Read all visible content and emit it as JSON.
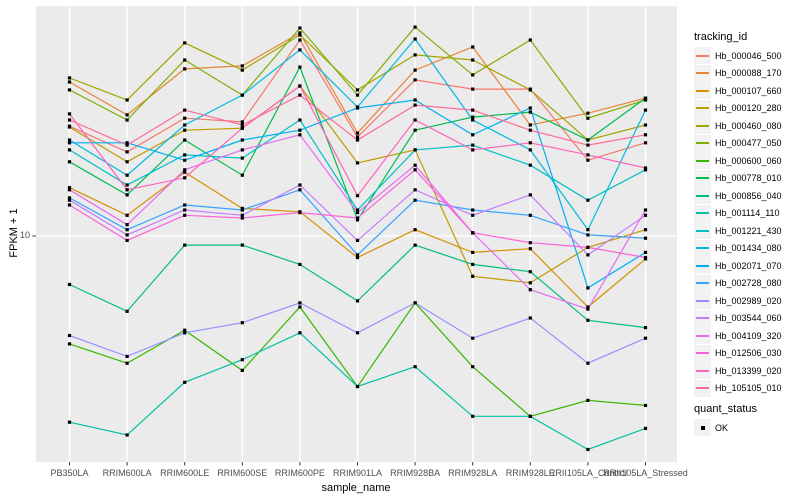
{
  "panel": {
    "background": "#EBEBEB",
    "gridline_color": "#FFFFFF",
    "tick_color": "#333333",
    "tick_text_color": "#4D4D4D"
  },
  "axes": {
    "x": {
      "title": "sample_name"
    },
    "y": {
      "title": "FPKM + 1",
      "tick_label": "10",
      "scale": "log10"
    }
  },
  "legend": {
    "tracking_title": "tracking_id",
    "quant_title": "quant_status",
    "quant_items": [
      {
        "label": "OK",
        "marker": "black-square"
      }
    ]
  },
  "chart_data": {
    "type": "line",
    "xlabel": "sample_name",
    "ylabel": "FPKM + 1",
    "yscale": "log10",
    "ytick_values": [
      10
    ],
    "ytick_labels": [
      "10"
    ],
    "ylim": [
      1.3,
      75
    ],
    "grid": "vertical-per-category-plus-y10",
    "legend_position": "right",
    "point_marker": {
      "shape": "square",
      "color": "#000000",
      "meaning": "quant_status OK"
    },
    "categories": [
      "PB350LA",
      "RRIM600LA",
      "RRIM600LE",
      "RRIM600SE",
      "RRIM600PE",
      "RRIM901LA",
      "RRIM928BA",
      "RRIM928LA",
      "RRIM928LE",
      "RRII105LA_Control",
      "RRII105LA_Stressed"
    ],
    "series": [
      {
        "name": "Hb_000046_500",
        "color": "#F8766D",
        "values": [
          27.5,
          21.7,
          29.6,
          28.6,
          60.8,
          24.9,
          42.1,
          38.7,
          38.7,
          20.1,
          23.6
        ]
      },
      {
        "name": "Hb_000088_170",
        "color": "#EA8331",
        "values": [
          41.3,
          30.5,
          46.6,
          47.9,
          64.9,
          25.8,
          46.1,
          57.0,
          27.8,
          31.0,
          35.6
        ]
      },
      {
        "name": "Hb_000107_660",
        "color": "#D89000",
        "values": [
          15.6,
          12.1,
          18.0,
          12.9,
          12.5,
          8.2,
          10.6,
          8.6,
          8.9,
          5.2,
          8.1
        ]
      },
      {
        "name": "Hb_000120_280",
        "color": "#C09B00",
        "values": [
          27.3,
          19.8,
          26.5,
          27.0,
          39.8,
          19.6,
          22.1,
          6.9,
          6.5,
          9.0,
          10.6
        ]
      },
      {
        "name": "Hb_000460_080",
        "color": "#A3A500",
        "values": [
          42.9,
          35.0,
          59.2,
          46.1,
          63.7,
          38.4,
          53.0,
          50.6,
          38.4,
          24.2,
          27.8
        ]
      },
      {
        "name": "Hb_000477_050",
        "color": "#7CAE00",
        "values": [
          38.4,
          29.1,
          50.6,
          36.6,
          67.9,
          36.6,
          68.5,
          44.1,
          60.8,
          29.6,
          35.0
        ]
      },
      {
        "name": "Hb_000600_060",
        "color": "#39B600",
        "values": [
          3.7,
          3.1,
          4.2,
          2.9,
          5.2,
          2.5,
          5.4,
          3.0,
          1.9,
          2.2,
          2.1
        ]
      },
      {
        "name": "Hb_000778_010",
        "color": "#00BB4E",
        "values": [
          19.8,
          14.6,
          24.2,
          17.5,
          47.4,
          11.6,
          26.5,
          29.9,
          31.3,
          24.2,
          35.6
        ]
      },
      {
        "name": "Hb_000856_040",
        "color": "#00BF7D",
        "values": [
          6.4,
          5.0,
          9.2,
          9.2,
          7.7,
          5.5,
          9.2,
          7.7,
          7.2,
          4.6,
          4.3
        ]
      },
      {
        "name": "Hb_001114_110",
        "color": "#00C1A3",
        "values": [
          1.8,
          1.6,
          2.6,
          3.2,
          4.1,
          2.5,
          3.0,
          1.9,
          1.9,
          1.4,
          1.7
        ]
      },
      {
        "name": "Hb_001221_430",
        "color": "#00BFC4",
        "values": [
          22.1,
          16.0,
          21.1,
          20.5,
          29.1,
          12.7,
          22.1,
          23.1,
          19.2,
          13.9,
          18.4
        ]
      },
      {
        "name": "Hb_001434_080",
        "color": "#00BAE0",
        "values": [
          24.2,
          17.5,
          27.8,
          36.6,
          55.5,
          32.8,
          61.4,
          29.1,
          22.1,
          10.6,
          31.9
        ]
      },
      {
        "name": "Hb_002071_070",
        "color": "#00B0F6",
        "values": [
          23.6,
          23.6,
          20.1,
          24.2,
          26.5,
          32.5,
          35.0,
          25.4,
          32.5,
          6.2,
          8.6
        ]
      },
      {
        "name": "Hb_002728_080",
        "color": "#35A2FF",
        "values": [
          14.2,
          10.6,
          13.3,
          12.7,
          15.3,
          8.4,
          13.9,
          12.7,
          12.1,
          10.1,
          9.8
        ]
      },
      {
        "name": "Hb_002989_020",
        "color": "#9590FF",
        "values": [
          4.0,
          3.3,
          4.1,
          4.5,
          5.4,
          4.1,
          5.4,
          3.9,
          4.7,
          3.1,
          3.9
        ]
      },
      {
        "name": "Hb_003544_060",
        "color": "#C77CFF",
        "values": [
          13.9,
          10.1,
          12.7,
          12.1,
          16.0,
          9.6,
          15.3,
          12.1,
          14.6,
          8.4,
          12.1
        ]
      },
      {
        "name": "Hb_004109_320",
        "color": "#E76BF3",
        "values": [
          15.3,
          11.1,
          18.4,
          22.1,
          25.4,
          12.4,
          19.2,
          10.3,
          6.1,
          5.1,
          12.7
        ]
      },
      {
        "name": "Hb_012506_030",
        "color": "#FA62DB",
        "values": [
          13.3,
          9.6,
          12.1,
          11.8,
          12.4,
          11.8,
          18.4,
          10.3,
          9.4,
          9.0,
          8.2
        ]
      },
      {
        "name": "Hb_013399_020",
        "color": "#FF62BC",
        "values": [
          30.8,
          15.3,
          17.1,
          27.0,
          39.8,
          14.5,
          29.1,
          22.1,
          23.6,
          21.1,
          18.7
        ]
      },
      {
        "name": "Hb_105105_010",
        "color": "#FF6A98",
        "values": [
          29.1,
          23.1,
          31.9,
          27.8,
          36.6,
          24.2,
          33.4,
          31.9,
          26.5,
          23.1,
          25.4
        ]
      }
    ]
  }
}
